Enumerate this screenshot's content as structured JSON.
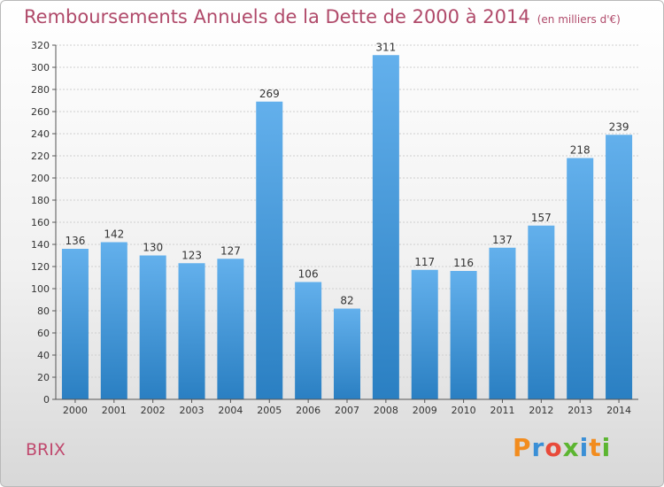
{
  "header": {
    "title": "Remboursements Annuels de la Dette de 2000 à 2014",
    "subtitle": "(en milliers d'€)"
  },
  "footer": {
    "commune": "BRIX",
    "logo_text": "Proxiti",
    "logo_colors": [
      "#f28c1e",
      "#3a8fd6",
      "#e84a3a",
      "#5cb531",
      "#3a8fd6",
      "#f28c1e",
      "#5cb531"
    ]
  },
  "colors": {
    "bar_top": "#63b0ec",
    "bar_bottom": "#2a7fc2",
    "title": "#b04a6a"
  },
  "chart_data": {
    "type": "bar",
    "categories": [
      "2000",
      "2001",
      "2002",
      "2003",
      "2004",
      "2005",
      "2006",
      "2007",
      "2008",
      "2009",
      "2010",
      "2011",
      "2012",
      "2013",
      "2014"
    ],
    "values": [
      136,
      142,
      130,
      123,
      127,
      269,
      106,
      82,
      311,
      117,
      116,
      137,
      157,
      218,
      239
    ],
    "ylim": [
      0,
      320
    ],
    "yticks": [
      0,
      20,
      40,
      60,
      80,
      100,
      120,
      140,
      160,
      180,
      200,
      220,
      240,
      260,
      280,
      300,
      320
    ],
    "grid": true
  }
}
